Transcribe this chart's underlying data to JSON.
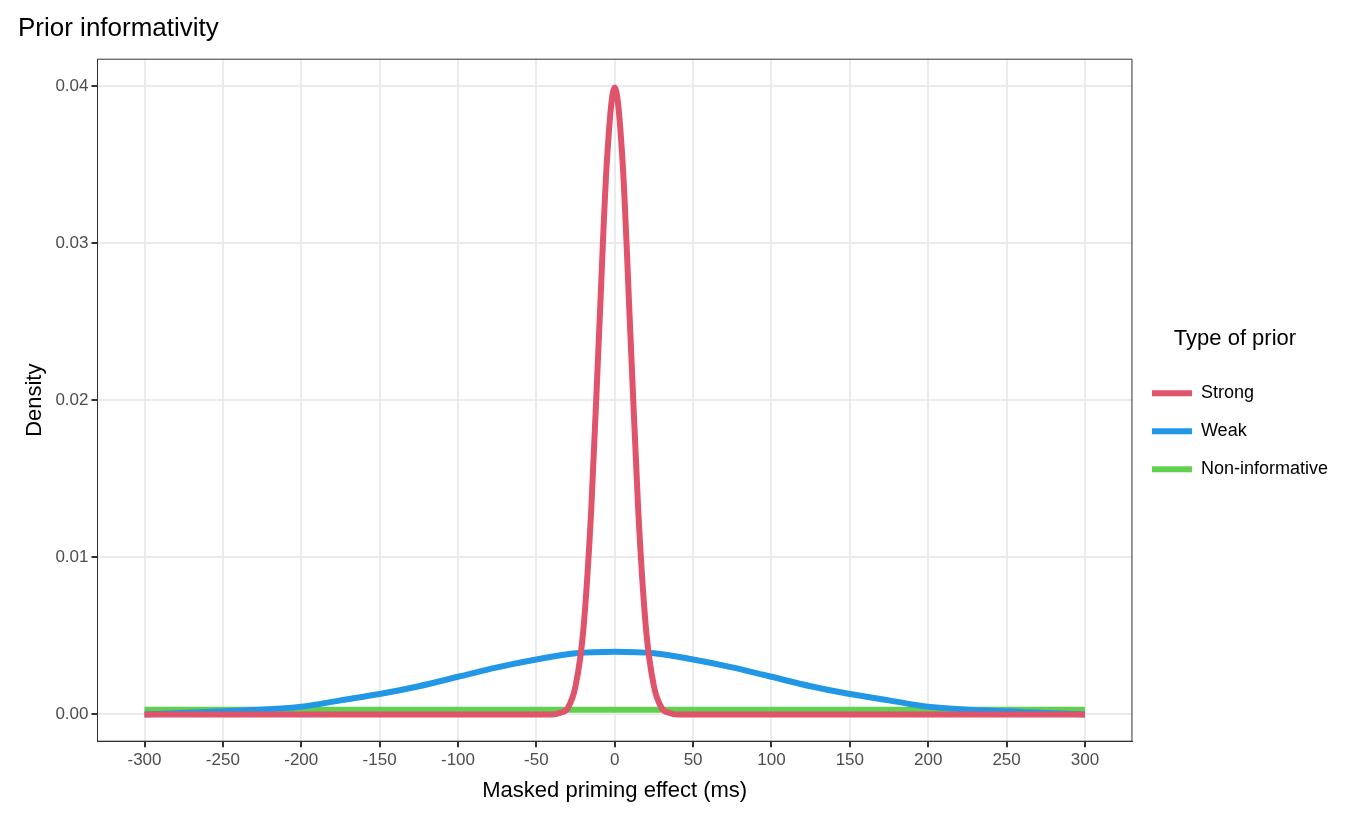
{
  "chart_data": {
    "type": "line",
    "title": "Prior informativity",
    "xlabel": "Masked priming effect (ms)",
    "ylabel": "Density",
    "legend_title": "Type of prior",
    "legend": "right",
    "grid": true,
    "marker": "none",
    "line_style": "solid",
    "xlim": [
      -330,
      330
    ],
    "xticks": [
      -300,
      -250,
      -200,
      -150,
      -100,
      -50,
      0,
      50,
      100,
      150,
      200,
      250,
      300
    ],
    "ylim": [
      -0.0017,
      0.0417
    ],
    "yticks": [
      {
        "value": 0,
        "label": "0.00"
      },
      {
        "value": 0.01,
        "label": "0.01"
      },
      {
        "value": 0.02,
        "label": "0.02"
      },
      {
        "value": 0.03,
        "label": "0.03"
      },
      {
        "value": 0.04,
        "label": "0.04"
      }
    ],
    "series": [
      {
        "name": "Strong",
        "color": "#df536b",
        "x": [
          -300,
          -50,
          -40,
          -35,
          -30,
          -25,
          -20,
          -15,
          -10,
          -5,
          0,
          5,
          10,
          15,
          20,
          25,
          30,
          35,
          40,
          50,
          300
        ],
        "values": [
          0,
          0,
          0,
          0.0001,
          0.0004,
          0.0018,
          0.0054,
          0.013,
          0.0242,
          0.0352,
          0.0399,
          0.0352,
          0.0242,
          0.013,
          0.0054,
          0.0018,
          0.0004,
          0.0001,
          0,
          0,
          0
        ]
      },
      {
        "name": "Weak",
        "color": "#2297e6",
        "x": [
          -300,
          -250,
          -200,
          -175,
          -150,
          -125,
          -100,
          -75,
          -50,
          -25,
          0,
          25,
          50,
          75,
          100,
          125,
          150,
          175,
          200,
          250,
          300
        ],
        "values": [
          0,
          0.0002,
          0.0005,
          0.0009,
          0.0013,
          0.0018,
          0.0024,
          0.003,
          0.0035,
          0.0039,
          0.004,
          0.0039,
          0.0035,
          0.003,
          0.0024,
          0.0018,
          0.0013,
          0.0009,
          0.0005,
          0.0002,
          0
        ]
      },
      {
        "name": "Non-informative",
        "color": "#61d04f",
        "x": [
          -300,
          300
        ],
        "values": [
          0.0003,
          0.0003
        ]
      }
    ]
  }
}
